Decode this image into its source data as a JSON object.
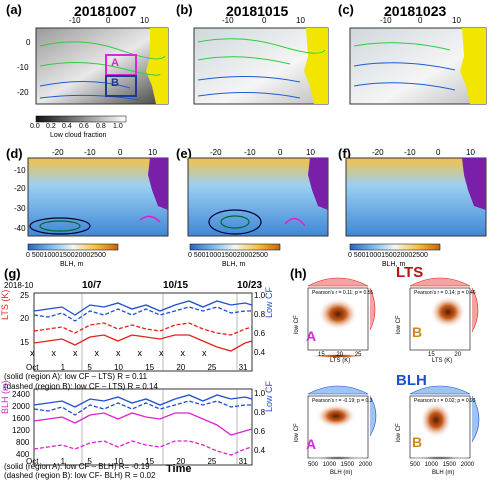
{
  "panels": {
    "a": {
      "label": "(a)",
      "date": "20181007",
      "region_a": "A",
      "region_b": "B"
    },
    "b": {
      "label": "(b)",
      "date": "20181015"
    },
    "c": {
      "label": "(c)",
      "date": "20181023"
    },
    "d": {
      "label": "(d)"
    },
    "e": {
      "label": "(e)"
    },
    "f": {
      "label": "(f)"
    },
    "g": {
      "label": "(g)"
    },
    "h": {
      "label": "(h)"
    }
  },
  "top_ticks": {
    "lon": [
      "-10",
      "0",
      "10"
    ],
    "lat": [
      "0",
      "-10",
      "-20"
    ]
  },
  "mid_ticks": {
    "lon": [
      "-20",
      "-10",
      "0",
      "10"
    ],
    "lat": [
      "-10",
      "-20",
      "-30",
      "-40"
    ]
  },
  "colorbar_cf": {
    "ticks": [
      "0.0",
      "0.2",
      "0.4",
      "0.6",
      "0.8",
      "1.0"
    ],
    "label": "Low cloud fraction"
  },
  "colorbar_blh": {
    "ticks": [
      "0",
      "500",
      "1000",
      "1500",
      "2000",
      "2500"
    ],
    "label": "BLH, m"
  },
  "timeseries": {
    "year_month": "2018-10",
    "markers": [
      "10/7",
      "10/15",
      "10/23"
    ],
    "top": {
      "ylabel": "LTS (K)",
      "yticks": [
        "25",
        "20",
        "15"
      ],
      "y2label": "Low CF",
      "y2ticks": [
        "1.0",
        "0.8",
        "0.6",
        "0.4"
      ]
    },
    "bottom": {
      "ylabel": "BLH (m)",
      "yticks": [
        "2400",
        "2000",
        "1600",
        "1200",
        "800",
        "400"
      ],
      "y2label": "Low CF",
      "y2ticks": [
        "1.0",
        "0.8",
        "0.6",
        "0.4"
      ]
    },
    "xticks": [
      "Oct 1",
      "5",
      "10",
      "15",
      "20",
      "25",
      "31"
    ],
    "xlabel": "Time",
    "caption_top_1": "(solid (region A): low CF – LTS) R = 0.11",
    "caption_top_2": "(dashed (region B): low CF – LTS) R = 0.14",
    "caption_bot_1": "(solid (region A): low CF – BLH) R= -0.19",
    "caption_bot_2": "(dashed (region B): low CF- BLH) R = 0.02",
    "x_marks": "x"
  },
  "scatter": {
    "lts_title": "LTS",
    "blh_title": "BLH",
    "p1": {
      "stat": "Pearson's r = 0.11; p = 0.55",
      "region": "A",
      "xlabel": "LTS (K)",
      "ylabel": "low CF",
      "xticks": [
        "15",
        "20",
        "25"
      ]
    },
    "p2": {
      "stat": "Pearson's r = 0.14; p = 0.46",
      "region": "B",
      "xlabel": "LTS (K)",
      "ylabel": "low CF",
      "xticks": [
        "15",
        "20"
      ]
    },
    "p3": {
      "stat": "Pearson's r = -0.19; p = 0.3",
      "region": "A",
      "xlabel": "BLH (m)",
      "ylabel": "low CF",
      "xticks": [
        "500",
        "1000",
        "1500",
        "2000"
      ]
    },
    "p4": {
      "stat": "Pearson's r = 0.02; p = 0.93",
      "region": "B",
      "xlabel": "BLH (m)",
      "ylabel": "low CF",
      "xticks": [
        "500",
        "1000",
        "1500",
        "2000"
      ]
    }
  },
  "colors": {
    "lcf_line": "#1f4fd1",
    "lts_line": "#e0241b",
    "blh_line": "#e020d0",
    "region_a": "#d62ad6",
    "region_b": "#d08a1a",
    "land": "#f2e600",
    "ocean_blue": "#5aa7e6"
  }
}
